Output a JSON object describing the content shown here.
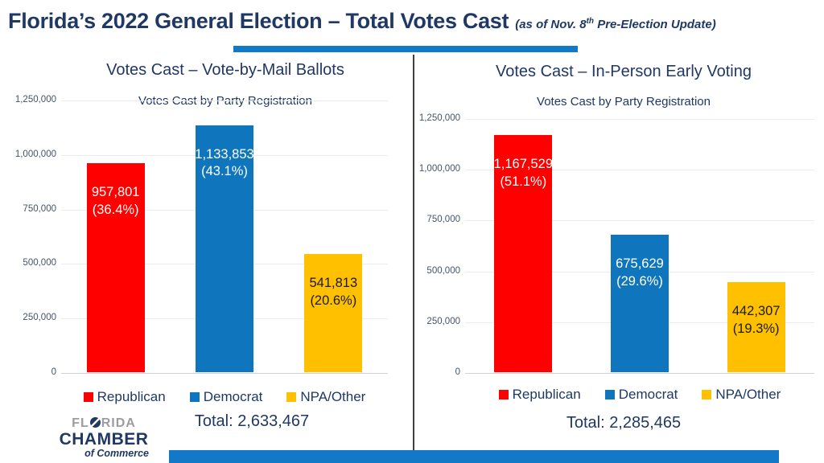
{
  "header": {
    "title": "Florida’s 2022 General Election – Total Votes Cast",
    "annotation_pre": "(as of Nov. 8",
    "annotation_sup": "th",
    "annotation_post": " Pre-Election Update)"
  },
  "colors": {
    "accent": "#1179C8",
    "navy": "#1F3864",
    "grid": "#ECECEC",
    "axis": "#D2D2D2",
    "tick_text": "#44546A"
  },
  "parties": [
    {
      "label": "Republican",
      "color": "#FE0000",
      "value_text_color": "#FFFFFF"
    },
    {
      "label": "Democrat",
      "color": "#0F75BC",
      "value_text_color": "#FFFFFF"
    },
    {
      "label": "NPA/Other",
      "color": "#FFC000",
      "value_text_color": "#1A1A1A"
    }
  ],
  "chart_data": [
    {
      "type": "bar",
      "title": "Votes Cast – Vote-by-Mail Ballots",
      "subtitle": "Votes Cast by Party Registration",
      "categories": [
        "Republican",
        "Democrat",
        "NPA/Other"
      ],
      "values": [
        957801,
        1133853,
        541813
      ],
      "value_labels": [
        "957,801",
        "1,133,853",
        "541,813"
      ],
      "percent_labels": [
        "(36.4%)",
        "(43.1%)",
        "(20.6%)"
      ],
      "ylim": [
        0,
        1250000
      ],
      "ytick_labels": [
        "1,250,000",
        "1,000,000",
        "750,000",
        "500,000",
        "250,000",
        "0"
      ],
      "grid": true,
      "legend_position": "bottom",
      "total_label": "Total: 2,633,467"
    },
    {
      "type": "bar",
      "title": "Votes Cast – In-Person Early Voting",
      "subtitle": "Votes Cast by Party Registration",
      "categories": [
        "Republican",
        "Democrat",
        "NPA/Other"
      ],
      "values": [
        1167529,
        675629,
        442307
      ],
      "value_labels": [
        "1,167,529",
        "675,629",
        "442,307"
      ],
      "percent_labels": [
        "(51.1%)",
        "(29.6%)",
        "(19.3%)"
      ],
      "ylim": [
        0,
        1250000
      ],
      "ytick_labels": [
        "1,250,000",
        "1,000,000",
        "750,000",
        "500,000",
        "250,000",
        "0"
      ],
      "grid": true,
      "legend_position": "bottom",
      "total_label": "Total: 2,285,465"
    }
  ],
  "logo": {
    "florida_pre": "FL",
    "florida_post": "RIDA",
    "chamber": "CHAMBER",
    "of_commerce": "of Commerce"
  }
}
